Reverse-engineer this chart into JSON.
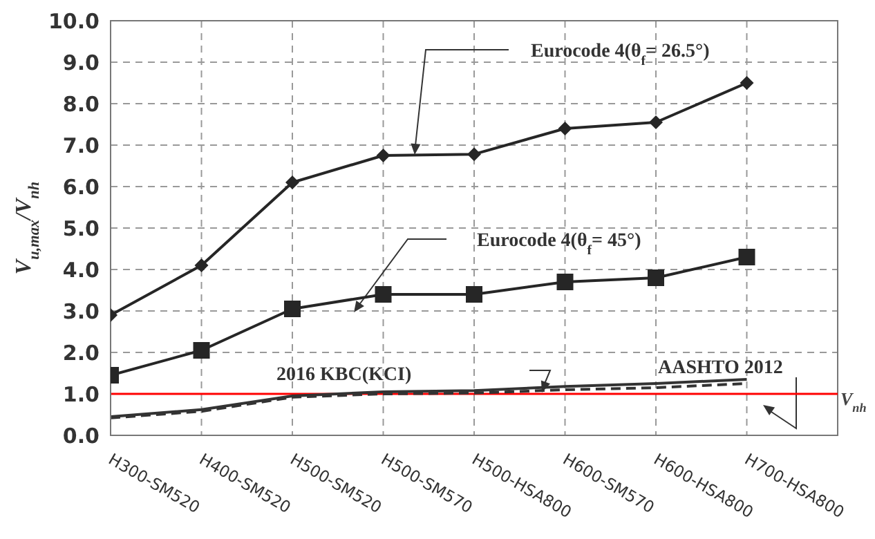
{
  "chart_data": {
    "type": "line",
    "ylabel": "V$_{u,max}$/V$_{nh}$",
    "categories": [
      "H300-SM520",
      "H400-SM520",
      "H500-SM520",
      "H500-SM570",
      "H500-HSA800",
      "H600-SM570",
      "H600-HSA800",
      "H700-HSA800"
    ],
    "series": [
      {
        "name": "Eurocode  4(θ$_{f}$= 26.5°)",
        "color": "#262626",
        "marker": "diamond",
        "line_style": "solid",
        "values": [
          2.9,
          4.1,
          6.1,
          6.75,
          6.78,
          7.4,
          7.55,
          8.5
        ]
      },
      {
        "name": "Eurocode  4(θ$_{f}$= 45°)",
        "color": "#262626",
        "marker": "square",
        "line_style": "solid",
        "values": [
          1.45,
          2.05,
          3.05,
          3.4,
          3.4,
          3.7,
          3.8,
          4.3
        ]
      },
      {
        "name": "2016 KBC(KCI)",
        "color": "#333333",
        "marker": "none",
        "line_style": "dashed",
        "values": [
          0.42,
          0.58,
          0.92,
          1.0,
          1.02,
          1.1,
          1.15,
          1.25
        ]
      },
      {
        "name": "AASHTO  2012",
        "color": "#333333",
        "marker": "none",
        "line_style": "solid",
        "values": [
          0.45,
          0.62,
          0.95,
          1.05,
          1.08,
          1.18,
          1.25,
          1.35
        ]
      }
    ],
    "ylim": [
      0,
      10
    ],
    "yticks": [
      {
        "value": 0,
        "label": "0.0"
      },
      {
        "value": 1,
        "label": "1.0"
      },
      {
        "value": 2,
        "label": "2.0"
      },
      {
        "value": 3,
        "label": "3.0"
      },
      {
        "value": 4,
        "label": "4.0"
      },
      {
        "value": 5,
        "label": "5.0"
      },
      {
        "value": 6,
        "label": "6.0"
      },
      {
        "value": 7,
        "label": "7.0"
      },
      {
        "value": 8,
        "label": "8.0"
      },
      {
        "value": 9,
        "label": "9.0"
      },
      {
        "value": 10,
        "label": "10.0"
      }
    ],
    "grid": true,
    "ref_lines": [
      {
        "axis": "y",
        "value": 1.0,
        "label": "V$_{nh}$",
        "color": "#ff0000"
      }
    ]
  }
}
